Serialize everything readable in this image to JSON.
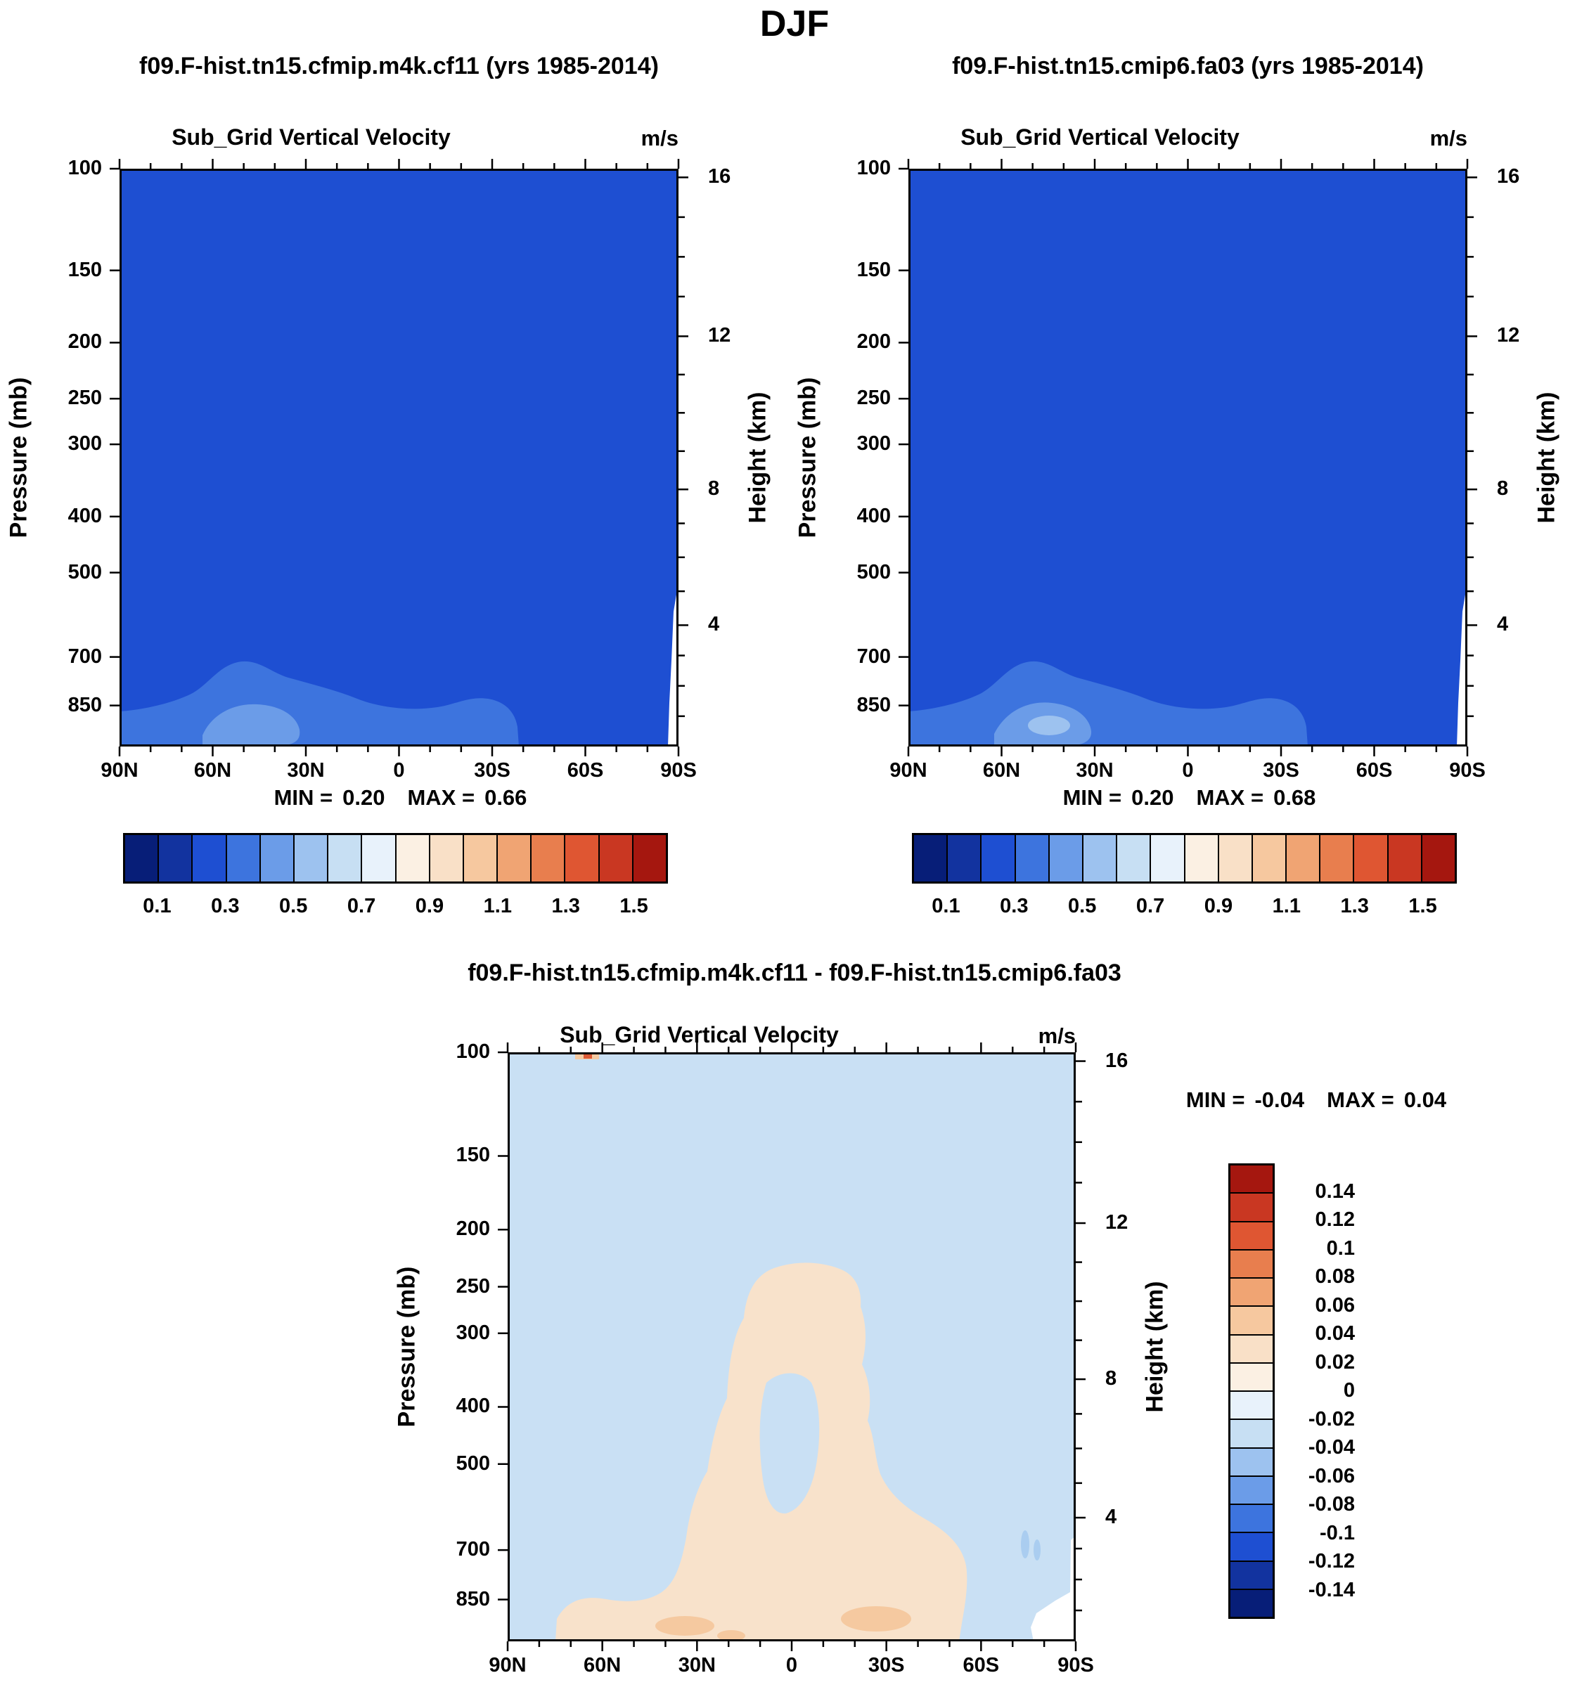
{
  "title": "DJF",
  "colors": {
    "field_main": "#1e4fd2",
    "field_band4": "#3d74de",
    "field_band5": "#6b9ce8",
    "field_band6": "#9dc2ef",
    "diff_bg": "#c9e0f4",
    "diff_pos1": "#f8e2cb",
    "diff_pos2": "#f5c9a0",
    "diff_neg2": "#aacdf0",
    "speck_red": "#dd5a35",
    "white": "#ffffff",
    "axis": "#000000",
    "palette": [
      "#071e78",
      "#12339f",
      "#1e4fd2",
      "#3d74de",
      "#6b9ce8",
      "#9dc2ef",
      "#c7dff3",
      "#e8f2fb",
      "#fbf0e3",
      "#f9e0c7",
      "#f6c89f",
      "#f0a473",
      "#e87e4e",
      "#df5632",
      "#c93722",
      "#a5170f"
    ]
  },
  "chart_data": [
    {
      "type": "heatmap",
      "title": "f09.F-hist.tn15.cfmip.m4k.cf11 (yrs 1985-2014)",
      "subtitle": "Sub_Grid Vertical Velocity",
      "units": "m/s",
      "ylabel": "Pressure (mb)",
      "y2label": "Height (km)",
      "y_ticks": [
        "100",
        "150",
        "200",
        "250",
        "300",
        "400",
        "500",
        "700",
        "850"
      ],
      "y2_ticks": [
        "16",
        "12",
        "8",
        "4"
      ],
      "x_ticks": [
        "90N",
        "60N",
        "30N",
        "0",
        "30S",
        "60S",
        "90S"
      ],
      "min_label": "MIN =",
      "min": "0.20",
      "max_label": "MAX =",
      "max": "0.66",
      "colorbar_orientation": "horizontal",
      "colorbar_ticks": [
        "0.1",
        "0.3",
        "0.5",
        "0.7",
        "0.9",
        "1.1",
        "1.3",
        "1.5"
      ],
      "levels": [
        0.1,
        0.2,
        0.3,
        0.4,
        0.5,
        0.6,
        0.7,
        0.8,
        0.9,
        1.0,
        1.1,
        1.2,
        1.3,
        1.4,
        1.5
      ],
      "field_summary": "Nearly uniform field in the 0.2-0.3 m/s band; 0.3-0.5 m/s pockets near 850 mb around 30-50N and 30-45S; white terrain gap near 90S below ~600 mb."
    },
    {
      "type": "heatmap",
      "title": "f09.F-hist.tn15.cmip6.fa03 (yrs 1985-2014)",
      "subtitle": "Sub_Grid Vertical Velocity",
      "units": "m/s",
      "ylabel": "Pressure (mb)",
      "y2label": "Height (km)",
      "y_ticks": [
        "100",
        "150",
        "200",
        "250",
        "300",
        "400",
        "500",
        "700",
        "850"
      ],
      "y2_ticks": [
        "16",
        "12",
        "8",
        "4"
      ],
      "x_ticks": [
        "90N",
        "60N",
        "30N",
        "0",
        "30S",
        "60S",
        "90S"
      ],
      "min_label": "MIN =",
      "min": "0.20",
      "max_label": "MAX =",
      "max": "0.68",
      "colorbar_orientation": "horizontal",
      "colorbar_ticks": [
        "0.1",
        "0.3",
        "0.5",
        "0.7",
        "0.9",
        "1.1",
        "1.3",
        "1.5"
      ],
      "levels": [
        0.1,
        0.2,
        0.3,
        0.4,
        0.5,
        0.6,
        0.7,
        0.8,
        0.9,
        1.0,
        1.1,
        1.2,
        1.3,
        1.4,
        1.5
      ],
      "field_summary": "Nearly uniform field in the 0.2-0.3 m/s band; slightly stronger 0.3-0.5 m/s pockets near 850 mb around 30-50N; white terrain gap near 90S below ~600 mb."
    },
    {
      "type": "heatmap",
      "title": "f09.F-hist.tn15.cfmip.m4k.cf11 - f09.F-hist.tn15.cmip6.fa03",
      "subtitle": "Sub_Grid Vertical Velocity",
      "units": "m/s",
      "ylabel": "Pressure (mb)",
      "y2label": "Height (km)",
      "y_ticks": [
        "100",
        "150",
        "200",
        "250",
        "300",
        "400",
        "500",
        "700",
        "850"
      ],
      "y2_ticks": [
        "16",
        "12",
        "8",
        "4"
      ],
      "x_ticks": [
        "90N",
        "60N",
        "30N",
        "0",
        "30S",
        "60S",
        "90S"
      ],
      "min_label": "MIN =",
      "min": "-0.04",
      "max_label": "MAX =",
      "max": "0.04",
      "colorbar_orientation": "vertical",
      "colorbar_ticks": [
        "0.14",
        "0.12",
        "0.1",
        "0.08",
        "0.06",
        "0.04",
        "0.02",
        "0",
        "-0.02",
        "-0.04",
        "-0.06",
        "-0.08",
        "-0.1",
        "-0.12",
        "-0.14"
      ],
      "levels": [
        -0.14,
        -0.12,
        -0.1,
        -0.08,
        -0.06,
        -0.04,
        -0.02,
        0,
        0.02,
        0.04,
        0.06,
        0.08,
        0.1,
        0.12,
        0.14
      ],
      "field_summary": "Mostly weak negative difference (light blue background); arch-shaped positive 0-0.02 m/s region between 30N and 30S from 850 mb up to ~250 mb with 0.02-0.04 m/s spots near the surface at 30N and 25S; white terrain gap near 90S."
    }
  ]
}
